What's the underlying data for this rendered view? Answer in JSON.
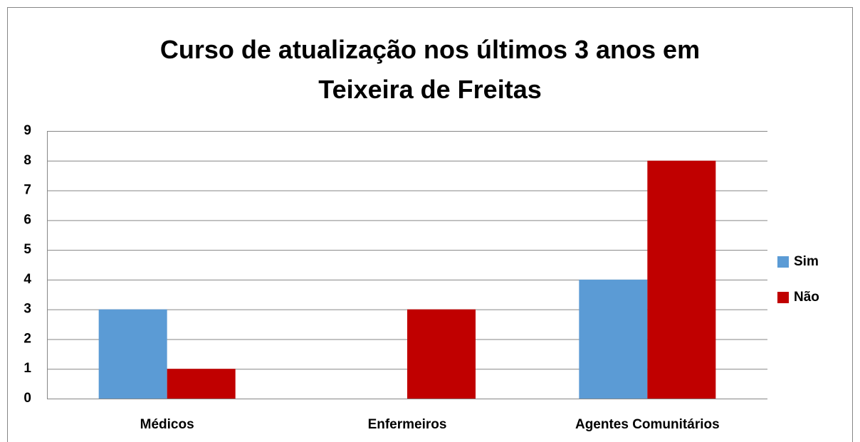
{
  "chart_data": {
    "type": "bar",
    "title": "Curso de atualização nos últimos 3 anos em Teixeira de Freitas",
    "categories": [
      "Médicos",
      "Enfermeiros",
      "Agentes Comunitários"
    ],
    "series": [
      {
        "name": "Sim",
        "color": "#5b9bd5",
        "values": [
          3,
          0,
          4
        ]
      },
      {
        "name": "Não",
        "color": "#c00000",
        "values": [
          1,
          3,
          8
        ]
      }
    ],
    "ylim": [
      0,
      9
    ],
    "yticks": [
      0,
      1,
      2,
      3,
      4,
      5,
      6,
      7,
      8,
      9
    ],
    "grid": true,
    "legend": "right"
  }
}
